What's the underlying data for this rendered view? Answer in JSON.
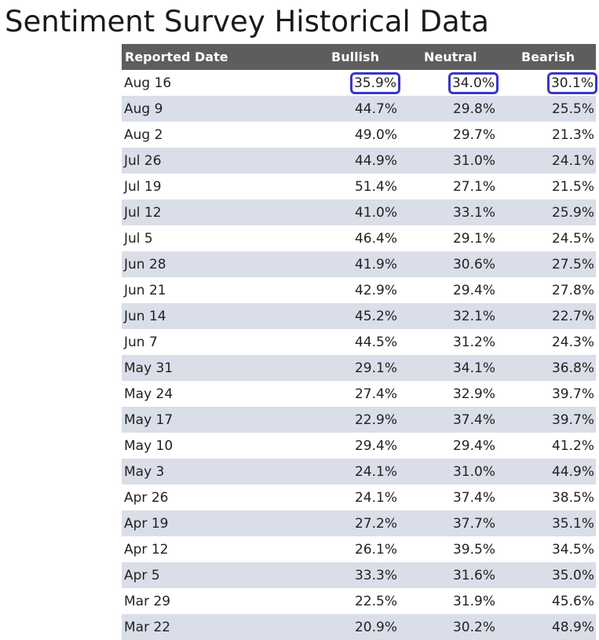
{
  "title": "Sentiment Survey Historical Data",
  "table": {
    "headers": [
      "Reported Date",
      "Bullish",
      "Neutral",
      "Bearish"
    ],
    "highlight_color": "#3737c8",
    "header_bg": "#5d5d5d",
    "stripe_bg": "#d9dee9",
    "highlighted_row": 0,
    "rows": [
      {
        "date": "Aug 16",
        "bullish": "35.9%",
        "neutral": "34.0%",
        "bearish": "30.1%"
      },
      {
        "date": "Aug 9",
        "bullish": "44.7%",
        "neutral": "29.8%",
        "bearish": "25.5%"
      },
      {
        "date": "Aug 2",
        "bullish": "49.0%",
        "neutral": "29.7%",
        "bearish": "21.3%"
      },
      {
        "date": "Jul 26",
        "bullish": "44.9%",
        "neutral": "31.0%",
        "bearish": "24.1%"
      },
      {
        "date": "Jul 19",
        "bullish": "51.4%",
        "neutral": "27.1%",
        "bearish": "21.5%"
      },
      {
        "date": "Jul 12",
        "bullish": "41.0%",
        "neutral": "33.1%",
        "bearish": "25.9%"
      },
      {
        "date": "Jul 5",
        "bullish": "46.4%",
        "neutral": "29.1%",
        "bearish": "24.5%"
      },
      {
        "date": "Jun 28",
        "bullish": "41.9%",
        "neutral": "30.6%",
        "bearish": "27.5%"
      },
      {
        "date": "Jun 21",
        "bullish": "42.9%",
        "neutral": "29.4%",
        "bearish": "27.8%"
      },
      {
        "date": "Jun 14",
        "bullish": "45.2%",
        "neutral": "32.1%",
        "bearish": "22.7%"
      },
      {
        "date": "Jun 7",
        "bullish": "44.5%",
        "neutral": "31.2%",
        "bearish": "24.3%"
      },
      {
        "date": "May 31",
        "bullish": "29.1%",
        "neutral": "34.1%",
        "bearish": "36.8%"
      },
      {
        "date": "May 24",
        "bullish": "27.4%",
        "neutral": "32.9%",
        "bearish": "39.7%"
      },
      {
        "date": "May 17",
        "bullish": "22.9%",
        "neutral": "37.4%",
        "bearish": "39.7%"
      },
      {
        "date": "May 10",
        "bullish": "29.4%",
        "neutral": "29.4%",
        "bearish": "41.2%"
      },
      {
        "date": "May 3",
        "bullish": "24.1%",
        "neutral": "31.0%",
        "bearish": "44.9%"
      },
      {
        "date": "Apr 26",
        "bullish": "24.1%",
        "neutral": "37.4%",
        "bearish": "38.5%"
      },
      {
        "date": "Apr 19",
        "bullish": "27.2%",
        "neutral": "37.7%",
        "bearish": "35.1%"
      },
      {
        "date": "Apr 12",
        "bullish": "26.1%",
        "neutral": "39.5%",
        "bearish": "34.5%"
      },
      {
        "date": "Apr 5",
        "bullish": "33.3%",
        "neutral": "31.6%",
        "bearish": "35.0%"
      },
      {
        "date": "Mar 29",
        "bullish": "22.5%",
        "neutral": "31.9%",
        "bearish": "45.6%"
      },
      {
        "date": "Mar 22",
        "bullish": "20.9%",
        "neutral": "30.2%",
        "bearish": "48.9%"
      }
    ]
  }
}
